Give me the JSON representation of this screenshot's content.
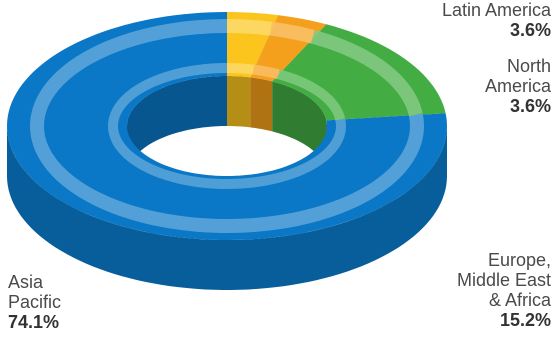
{
  "chart_data": {
    "type": "pie",
    "style": "3d-donut",
    "categories": [
      "Asia Pacific",
      "Latin America",
      "North America",
      "Europe, Middle East & Africa"
    ],
    "values": [
      74.1,
      3.6,
      3.6,
      15.2
    ],
    "labels": [
      {
        "name": "Latin America",
        "pct": "3.6%"
      },
      {
        "name": "North\nAmerica",
        "pct": "3.6%"
      },
      {
        "name": "Europe,\nMiddle East\n& Africa",
        "pct": "15.2%"
      },
      {
        "name": "Asia\nPacific",
        "pct": "74.1%"
      }
    ],
    "colors": {
      "Asia Pacific": "#0a78c6",
      "Latin America": "#fbc51e",
      "North America": "#f5a01c",
      "Europe, Middle East & Africa": "#43ad44"
    },
    "title": "",
    "legend": "none"
  }
}
